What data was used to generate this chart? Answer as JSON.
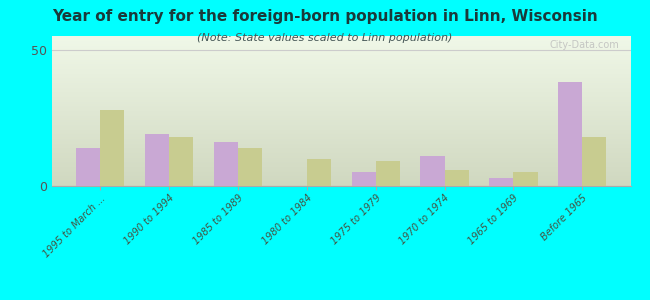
{
  "title": "Year of entry for the foreign-born population in Linn, Wisconsin",
  "subtitle": "(Note: State values scaled to Linn population)",
  "categories": [
    "1995 to March ...",
    "1990 to 1994",
    "1985 to 1989",
    "1980 to 1984",
    "1975 to 1979",
    "1970 to 1974",
    "1965 to 1969",
    "Before 1965"
  ],
  "linn_values": [
    14,
    19,
    16,
    0,
    5,
    11,
    3,
    38
  ],
  "wisconsin_values": [
    28,
    18,
    14,
    10,
    9,
    6,
    5,
    18
  ],
  "linn_color": "#c9a8d4",
  "wisconsin_color": "#c8cc90",
  "background_topleft": "#d0d8c0",
  "background_bottomright": "#f0f8e8",
  "ylim": [
    0,
    55
  ],
  "yticks": [
    0,
    50
  ],
  "bar_width": 0.35,
  "bg_color": "#00ffff",
  "watermark": "City-Data.com"
}
